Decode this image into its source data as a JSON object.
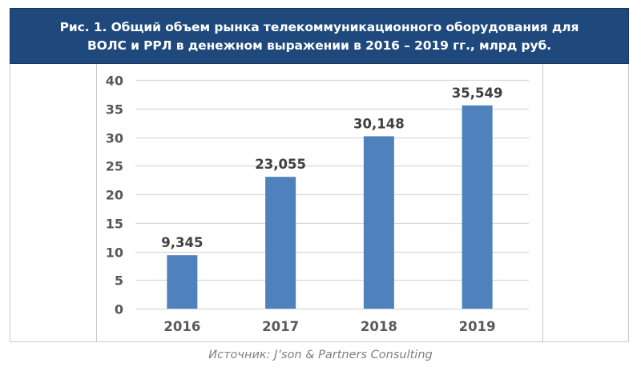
{
  "figure": {
    "title_line1": "Рис. 1. Общий объем рынка телекоммуникационного оборудования для",
    "title_line2": "ВОЛС и РРЛ в денежном выражении в 2016 – 2019 гг., млрд руб.",
    "source": "Источник: J’son & Partners Consulting",
    "colors": {
      "title_band": "#1f497d",
      "bar": "#4f81bd",
      "label_text": "#404040",
      "grid": "#d9d9d9"
    }
  },
  "chart_data": {
    "type": "bar",
    "title": "Рис. 1. Общий объем рынка телекоммуникационного оборудования для ВОЛС и РРЛ в денежном выражении в 2016 – 2019 гг., млрд руб.",
    "xlabel": "",
    "ylabel": "",
    "categories": [
      "2016",
      "2017",
      "2018",
      "2019"
    ],
    "values": [
      9.345,
      23.055,
      30.148,
      35.549
    ],
    "data_labels": [
      "9,345",
      "23,055",
      "30,148",
      "35,549"
    ],
    "ylim": [
      0,
      40
    ],
    "yticks": [
      "0",
      "5",
      "10",
      "15",
      "20",
      "25",
      "30",
      "35",
      "40"
    ],
    "grid": true,
    "legend": null,
    "units": "млрд руб."
  }
}
